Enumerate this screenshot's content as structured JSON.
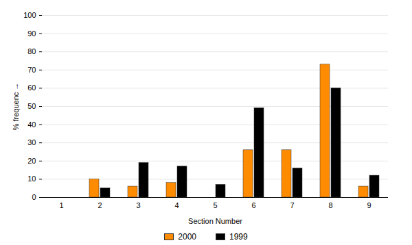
{
  "chart_data": {
    "type": "bar",
    "x_label": "Section Number",
    "y_label": "% frequenc",
    "categories": [
      "1",
      "2",
      "3",
      "4",
      "5",
      "6",
      "7",
      "8",
      "9"
    ],
    "series": [
      {
        "name": "2000",
        "color": "#ff8c00",
        "values": [
          0,
          10,
          6,
          8,
          0,
          26,
          26,
          73,
          6
        ]
      },
      {
        "name": "1999",
        "color": "#000000",
        "values": [
          0,
          5,
          19,
          17,
          7,
          49,
          16,
          60,
          12
        ]
      }
    ],
    "ylim": [
      0,
      100
    ],
    "yticks": [
      0,
      10,
      20,
      30,
      40,
      50,
      60,
      70,
      80,
      90,
      100
    ],
    "grid": true,
    "legend": "bottom"
  }
}
